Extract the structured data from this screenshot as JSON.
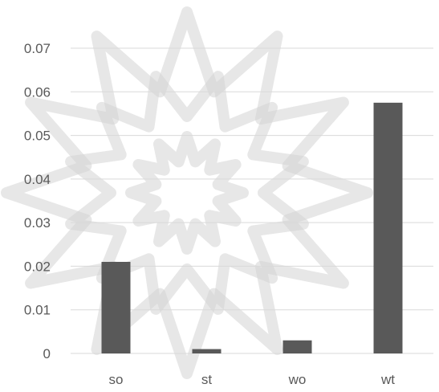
{
  "chart_data": {
    "type": "bar",
    "categories": [
      "so",
      "st",
      "wo",
      "wt"
    ],
    "values": [
      0.021,
      0.001,
      0.003,
      0.0575
    ],
    "title": "",
    "xlabel": "",
    "ylabel": "",
    "ylim": [
      0,
      0.07
    ],
    "yticks": [
      "0",
      "0.01",
      "0.02",
      "0.03",
      "0.04",
      "0.05",
      "0.06",
      "0.07"
    ],
    "grid": true,
    "legend": "none",
    "bar_color": "#595959"
  }
}
